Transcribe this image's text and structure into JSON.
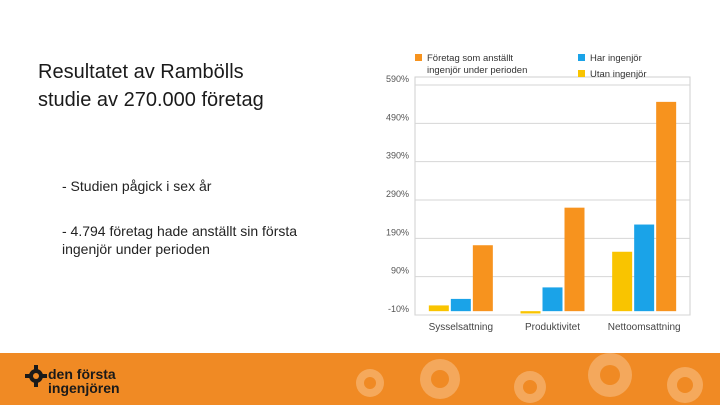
{
  "slide": {
    "title_line1": "Resultatet av Rambölls",
    "title_line2": "studie av 270.000 företag",
    "bullets": [
      "- Studien pågick i sex år",
      "- 4.794 företag hade anställt sin första ingenjör under perioden"
    ]
  },
  "logo": {
    "line1": "den första",
    "line2": "ingenjören"
  },
  "colors": {
    "footer": "#f08a24",
    "orange": "#f7931e",
    "blue": "#1aa3e8",
    "yellow": "#f9c400"
  },
  "chart_data": {
    "type": "bar",
    "categories": [
      "Sysselsattning",
      "Produktivitet",
      "Nettoomsattning"
    ],
    "series": [
      {
        "name": "Har ingenjör",
        "color": "#1aa3e8",
        "values": [
          32,
          62,
          226
        ]
      },
      {
        "name": "Företag som anställt ingenjör under perioden",
        "color": "#f7931e",
        "values": [
          172,
          270,
          546
        ]
      },
      {
        "name": "Utan ingenjör",
        "color": "#f9c400",
        "values": [
          15,
          -6,
          155
        ]
      }
    ],
    "series_order": [
      2,
      0,
      1
    ],
    "ylim": [
      -10,
      590
    ],
    "ticks": [
      -10,
      90,
      190,
      290,
      390,
      490,
      590
    ],
    "tick_labels": [
      "-10%",
      "90%",
      "190%",
      "290%",
      "390%",
      "490%",
      "590%"
    ],
    "legend": [
      {
        "label_line1": "Företag som anställt",
        "label_line2": "ingenjör under perioden",
        "color": "#f7931e"
      },
      {
        "label_line1": "Har ingenjör",
        "label_line2": "",
        "color": "#1aa3e8"
      },
      {
        "label_line1": "Utan ingenjör",
        "label_line2": "",
        "color": "#f9c400"
      }
    ],
    "legend_position": "top",
    "grid": true
  }
}
